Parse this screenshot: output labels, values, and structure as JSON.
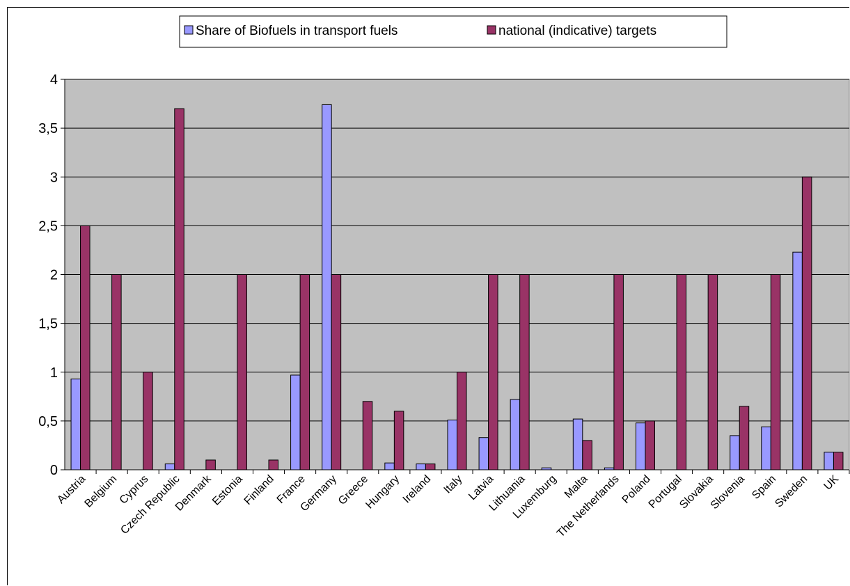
{
  "chart_data": {
    "type": "bar",
    "categories": [
      "Austria",
      "Belgium",
      "Cyprus",
      "Czech Republic",
      "Denmark",
      "Estonia",
      "Finland",
      "France",
      "Germany",
      "Greece",
      "Hungary",
      "Ireland",
      "Italy",
      "Latvia",
      "Lithuania",
      "Luxemburg",
      "Malta",
      "The Netherlands",
      "Poland",
      "Portugal",
      "Slovakia",
      "Slovenia",
      "Spain",
      "Sweden",
      "UK"
    ],
    "series": [
      {
        "name": "Share of Biofuels in transport fuels",
        "values": [
          0.93,
          0,
          0,
          0.06,
          0,
          0,
          0,
          0.97,
          3.74,
          0,
          0.07,
          0.06,
          0.51,
          0.33,
          0.72,
          0.02,
          0.52,
          0.02,
          0.48,
          0,
          0,
          0.35,
          0.44,
          2.23,
          0.18
        ]
      },
      {
        "name": "national (indicative) targets",
        "values": [
          2.5,
          2,
          1,
          3.7,
          0.1,
          2,
          0.1,
          2,
          2,
          0.7,
          0.6,
          0.06,
          1,
          2,
          2,
          0,
          0.3,
          2,
          0.5,
          2,
          2,
          0.65,
          2,
          3,
          0.18
        ]
      }
    ],
    "ylim": [
      0,
      4
    ],
    "yticks": [
      "0",
      "0,5",
      "1",
      "1,5",
      "2",
      "2,5",
      "3",
      "3,5",
      "4"
    ],
    "grid": true,
    "legend_position": "top",
    "colors": {
      "series1": "#9999ff",
      "series2": "#993366",
      "plot_background": "#c0c0c0"
    }
  }
}
